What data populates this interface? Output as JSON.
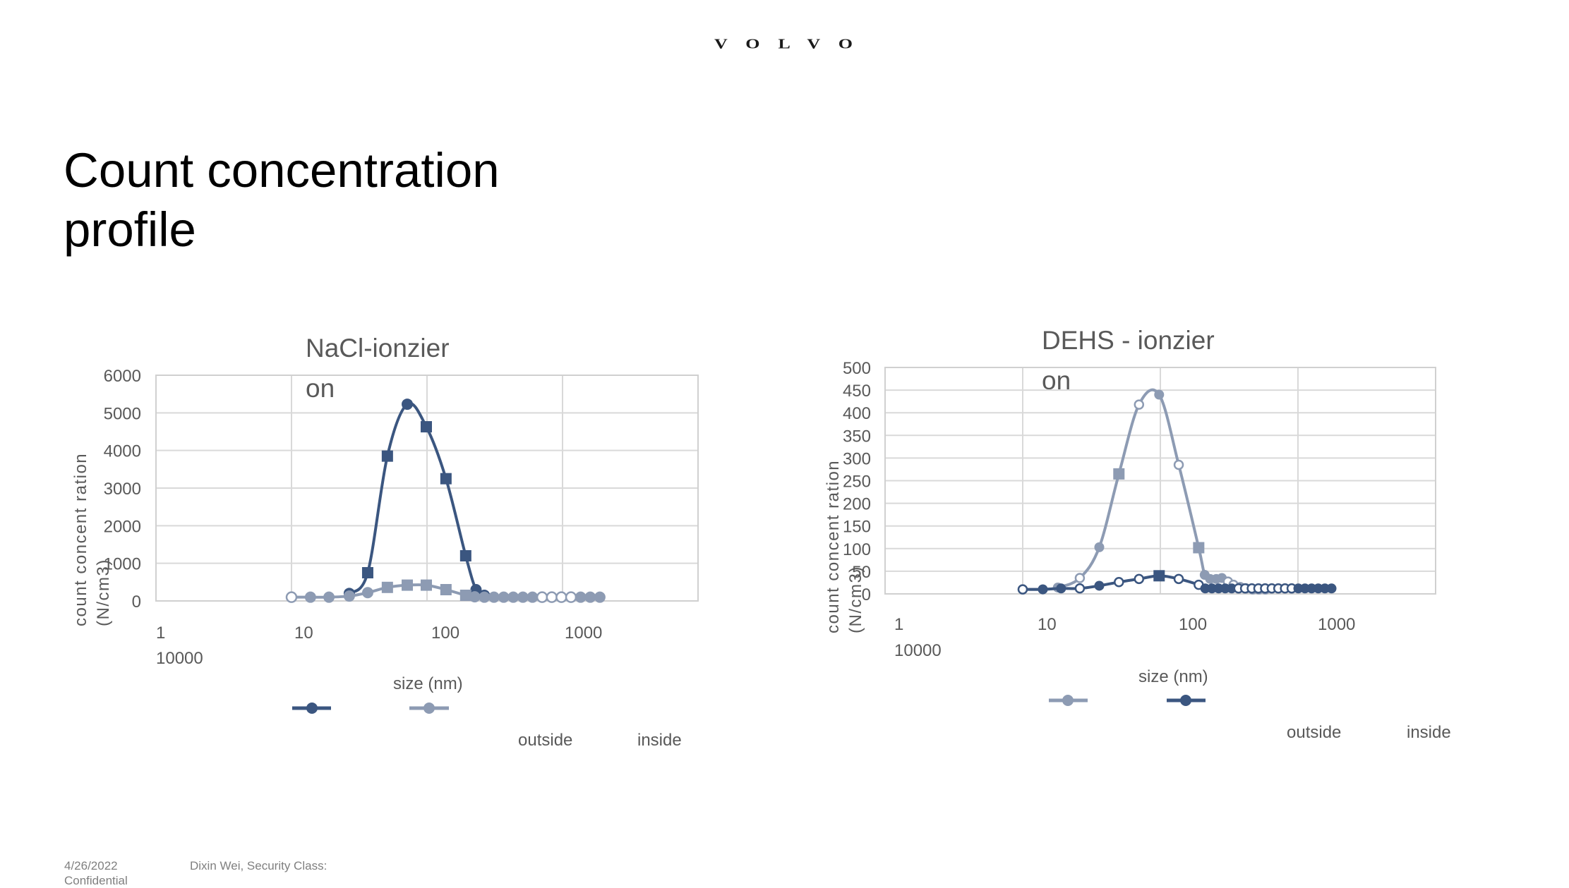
{
  "header": {
    "logo_text": "VOLVO"
  },
  "slide": {
    "title_line1": "Count concentration",
    "title_line2": "profile"
  },
  "footer": {
    "date": "4/26/2022",
    "author": "Dixin Wei, Security Class:",
    "classification": "Confidential"
  },
  "colors": {
    "outside": "#8d9bb3",
    "inside": "#3b5680",
    "grid": "#d9d9d9",
    "text": "#595959"
  },
  "chart_data": [
    {
      "type": "line",
      "title": "NaCl-ionzier",
      "title_line2": "on",
      "xlabel": "size (nm)",
      "ylabel_line1": "count concent ration",
      "ylabel_line2": "(N/cm3)",
      "xscale": "log",
      "xlim": [
        1,
        10000
      ],
      "x_tick_labels": [
        "1",
        "10",
        "100",
        "1000"
      ],
      "x_tick_label_wrapped": "10000",
      "ylim": [
        0,
        6000
      ],
      "y_ticks": [
        0,
        1000,
        2000,
        3000,
        4000,
        5000,
        6000
      ],
      "grid": true,
      "legend": {
        "entries": [
          "inside",
          "outside"
        ],
        "labels_shown": [
          "outside",
          "inside"
        ],
        "position": "bottom"
      },
      "series": [
        {
          "name": "inside",
          "color": "#3b5680",
          "x": [
            26.7,
            36.5,
            51,
            71.5,
            98.8,
            138,
            193,
            230,
            265
          ],
          "y": [
            200,
            750,
            3850,
            5230,
            4630,
            3250,
            1200,
            300,
            150
          ],
          "markers": [
            "circle",
            "square",
            "square",
            "circle",
            "square",
            "square",
            "square",
            "circle",
            "circle"
          ]
        },
        {
          "name": "outside",
          "color": "#8d9bb3",
          "x": [
            10,
            13.8,
            18.9,
            26.7,
            36.5,
            51,
            71.5,
            98.8,
            138,
            193,
            225,
            265,
            312,
            368,
            433,
            510,
            600,
            707,
            833,
            981,
            1155,
            1360,
            1602,
            1886
          ],
          "y": [
            100,
            100,
            100,
            130,
            220,
            360,
            420,
            420,
            300,
            150,
            110,
            100,
            100,
            100,
            100,
            100,
            100,
            100,
            100,
            100,
            100,
            100,
            100,
            100
          ],
          "markers": [
            "open-circle",
            "circle",
            "circle",
            "circle",
            "circle",
            "square",
            "square",
            "square",
            "square",
            "square",
            "circle",
            "circle",
            "circle",
            "circle",
            "circle",
            "circle",
            "circle",
            "open-circle",
            "open-circle",
            "open-circle",
            "open-circle",
            "circle",
            "circle",
            "circle"
          ]
        }
      ]
    },
    {
      "type": "line",
      "title": "DEHS - ionzier",
      "title_line2": "on",
      "xlabel": "size (nm)",
      "ylabel_line1": "count concent ration",
      "ylabel_line2": "(N/cm3)",
      "xscale": "log",
      "xlim": [
        1,
        10000
      ],
      "x_tick_labels": [
        "1",
        "10",
        "100",
        "1000"
      ],
      "x_tick_label_wrapped": "10000",
      "ylim": [
        0,
        500
      ],
      "y_ticks": [
        0,
        50,
        100,
        150,
        200,
        250,
        300,
        350,
        400,
        450,
        500
      ],
      "grid": true,
      "legend": {
        "entries": [
          "outside",
          "inside"
        ],
        "labels_shown": [
          "outside",
          "inside"
        ],
        "position": "bottom"
      },
      "series": [
        {
          "name": "outside",
          "color": "#8d9bb3",
          "x": [
            10,
            14,
            18,
            26,
            36,
            50,
            70,
            98,
            136,
            190,
            210,
            230,
            255,
            280,
            310,
            340,
            380,
            420,
            470,
            520,
            580
          ],
          "y": [
            10,
            10,
            14,
            35,
            103,
            265,
            418,
            440,
            285,
            102,
            42,
            33,
            33,
            35,
            27,
            20,
            15,
            12,
            10,
            10,
            10
          ],
          "markers": [
            "open-circle",
            "circle",
            "circle",
            "open-circle",
            "circle",
            "square",
            "open-circle",
            "circle",
            "open-circle",
            "square",
            "circle",
            "circle",
            "circle",
            "circle",
            "open-circle",
            "open-circle",
            "open-circle",
            "open-circle",
            "open-circle",
            "open-circle",
            "open-circle"
          ]
        },
        {
          "name": "inside",
          "color": "#3b5680",
          "x": [
            10,
            14,
            19,
            26,
            36,
            50,
            70,
            98,
            136,
            190,
            212,
            237,
            265,
            296,
            330,
            370,
            413,
            462,
            516,
            577,
            645,
            720,
            805,
            900,
            1006,
            1124,
            1256,
            1404,
            1569,
            1753
          ],
          "y": [
            10,
            10,
            12,
            12,
            18,
            26,
            33,
            40,
            33,
            20,
            12,
            12,
            12,
            12,
            12,
            12,
            12,
            12,
            12,
            12,
            12,
            12,
            12,
            12,
            12,
            12,
            12,
            12,
            12,
            12
          ],
          "markers": [
            "open-circle",
            "circle",
            "circle",
            "open-circle",
            "circle",
            "open-circle",
            "open-circle",
            "square",
            "open-circle",
            "open-circle",
            "circle",
            "circle",
            "circle",
            "circle",
            "circle",
            "open-circle",
            "open-circle",
            "open-circle",
            "open-circle",
            "open-circle",
            "open-circle",
            "open-circle",
            "open-circle",
            "open-circle",
            "circle",
            "circle",
            "circle",
            "circle",
            "circle",
            "circle"
          ]
        }
      ]
    }
  ]
}
